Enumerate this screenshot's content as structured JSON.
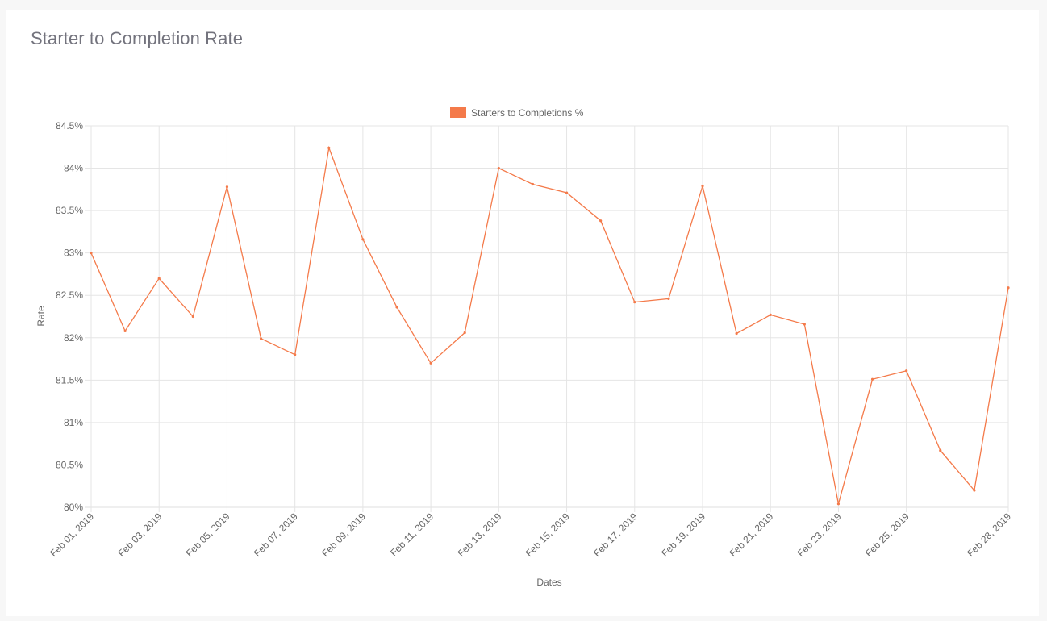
{
  "card": {
    "title": "Starter to Completion Rate"
  },
  "colors": {
    "series": "#f47a4a",
    "legend_box": "#f47a4a",
    "grid": "#e5e5e5",
    "text": "#666666"
  },
  "chart_data": {
    "type": "line",
    "title": "Starter to Completion Rate",
    "xlabel": "Dates",
    "ylabel": "Rate",
    "ylim": [
      80,
      84.5
    ],
    "y_ticks": [
      "84.5%",
      "84%",
      "83.5%",
      "83%",
      "82.5%",
      "82%",
      "81.5%",
      "81%",
      "80.5%",
      "80%"
    ],
    "x_tick_labels": [
      "Feb 01, 2019",
      "Feb 03, 2019",
      "Feb 05, 2019",
      "Feb 07, 2019",
      "Feb 09, 2019",
      "Feb 11, 2019",
      "Feb 13, 2019",
      "Feb 15, 2019",
      "Feb 17, 2019",
      "Feb 19, 2019",
      "Feb 21, 2019",
      "Feb 23, 2019",
      "Feb 25, 2019",
      "Feb 28, 2019"
    ],
    "legend": {
      "position": "top",
      "entries": [
        "Starters to Completions %"
      ]
    },
    "grid": true,
    "x": [
      "Feb 01, 2019",
      "Feb 02, 2019",
      "Feb 03, 2019",
      "Feb 04, 2019",
      "Feb 05, 2019",
      "Feb 06, 2019",
      "Feb 07, 2019",
      "Feb 08, 2019",
      "Feb 09, 2019",
      "Feb 10, 2019",
      "Feb 11, 2019",
      "Feb 12, 2019",
      "Feb 13, 2019",
      "Feb 14, 2019",
      "Feb 15, 2019",
      "Feb 16, 2019",
      "Feb 17, 2019",
      "Feb 18, 2019",
      "Feb 19, 2019",
      "Feb 20, 2019",
      "Feb 21, 2019",
      "Feb 22, 2019",
      "Feb 23, 2019",
      "Feb 24, 2019",
      "Feb 25, 2019",
      "Feb 26, 2019",
      "Feb 27, 2019",
      "Feb 28, 2019"
    ],
    "series": [
      {
        "name": "Starters to Completions %",
        "values": [
          83.0,
          82.08,
          82.7,
          82.25,
          83.78,
          81.99,
          81.8,
          84.24,
          83.16,
          82.36,
          81.7,
          82.06,
          84.0,
          83.81,
          83.71,
          83.38,
          82.42,
          82.46,
          83.79,
          82.05,
          82.27,
          82.16,
          80.04,
          81.51,
          81.61,
          80.67,
          80.2,
          82.59
        ]
      }
    ]
  }
}
